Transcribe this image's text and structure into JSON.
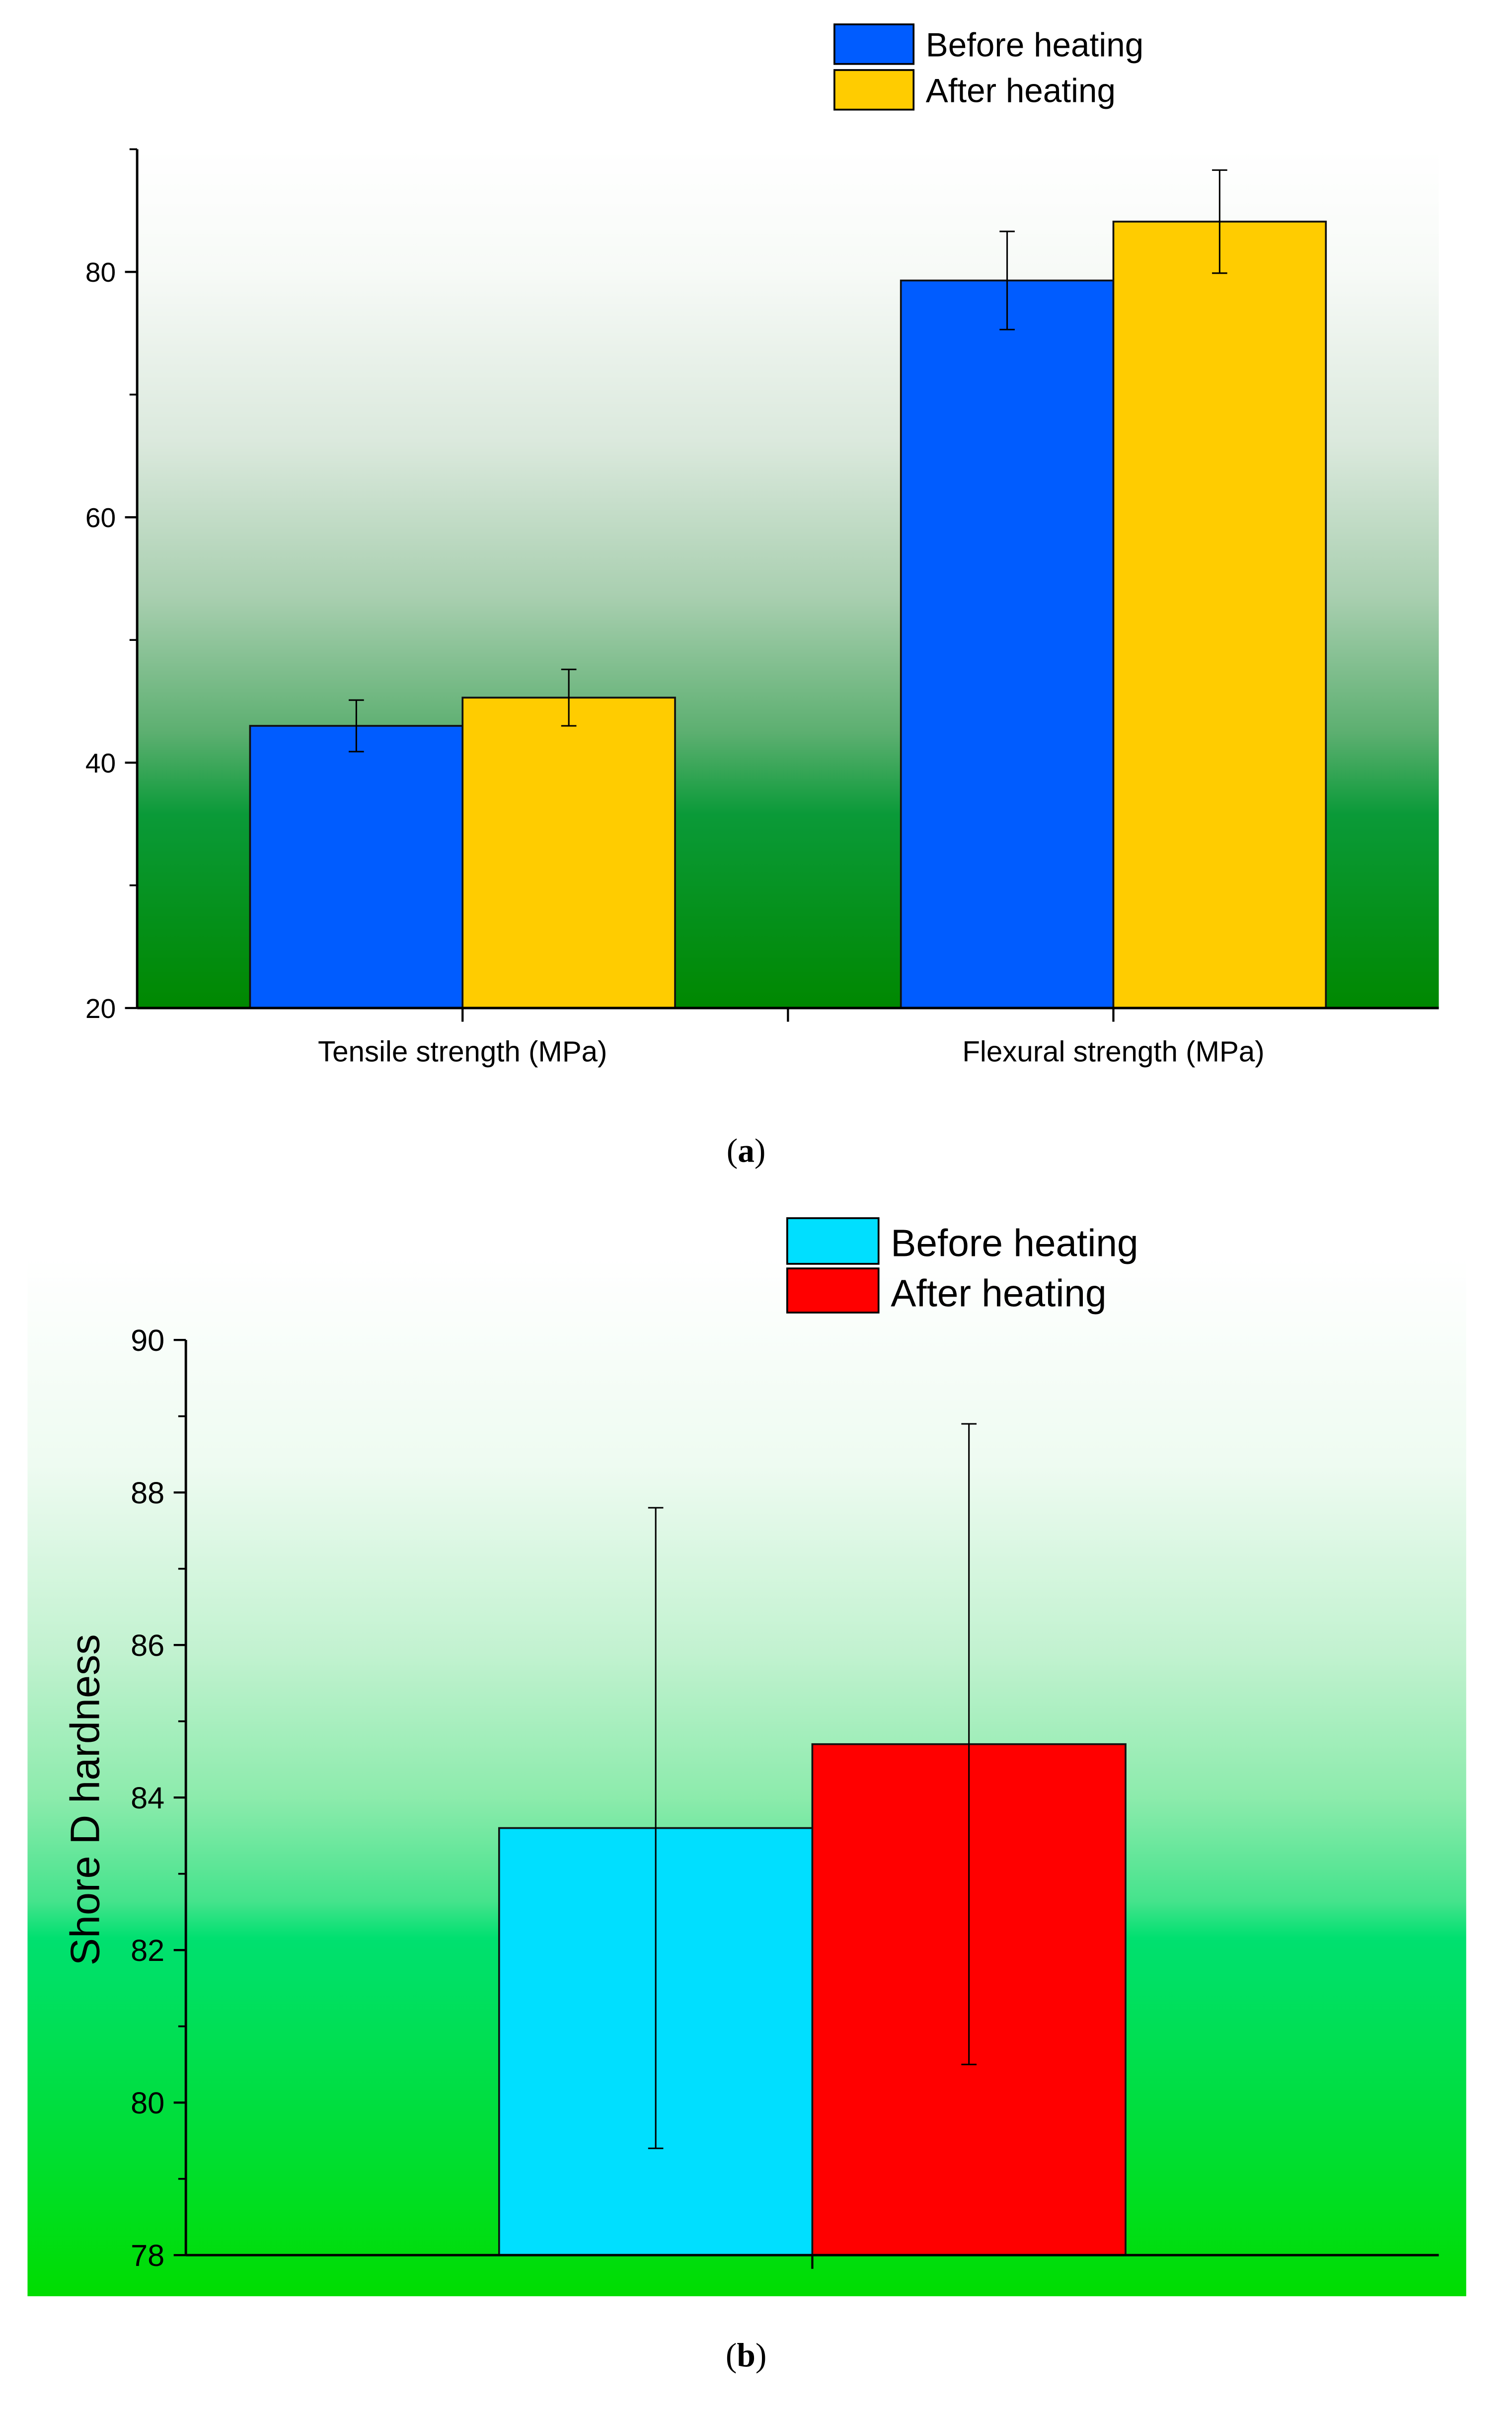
{
  "chart_data": [
    {
      "type": "bar",
      "categories": [
        "Tensile strength (MPa)",
        "Flexural strength (MPa)"
      ],
      "series": [
        {
          "name": "Before heating",
          "values": [
            43.0,
            79.3
          ],
          "errors": [
            2.1,
            4.0
          ],
          "color": "#005cff"
        },
        {
          "name": "After heating",
          "values": [
            45.3,
            84.1
          ],
          "errors": [
            2.3,
            4.2
          ],
          "color": "#ffcc00"
        }
      ],
      "ylim": [
        20,
        90
      ],
      "yticks": [
        20,
        40,
        60,
        80
      ],
      "y_minor_ticks": [
        30,
        50,
        70,
        90
      ],
      "grid": false,
      "legend": "top",
      "background_colors": [
        "#ffffff",
        "#008800"
      ],
      "caption": {
        "open": "(",
        "letter": "a",
        "close": ")"
      }
    },
    {
      "type": "bar",
      "series": [
        {
          "name": "Before heating",
          "values": [
            83.6
          ],
          "errors": [
            4.2
          ],
          "color": "#00dfff"
        },
        {
          "name": "After heating",
          "values": [
            84.7
          ],
          "errors": [
            4.2
          ],
          "color": "#ff0000"
        }
      ],
      "ylabel": "Shore D hardness",
      "ylim": [
        78,
        90
      ],
      "yticks": [
        78,
        80,
        82,
        84,
        86,
        88,
        90
      ],
      "y_minor_ticks": [
        79,
        81,
        83,
        85,
        87,
        89
      ],
      "grid": false,
      "legend": "top",
      "background_colors": [
        "#ffffff",
        "#00dd00"
      ],
      "caption": {
        "open": "(",
        "letter": "b",
        "close": ")"
      }
    }
  ]
}
